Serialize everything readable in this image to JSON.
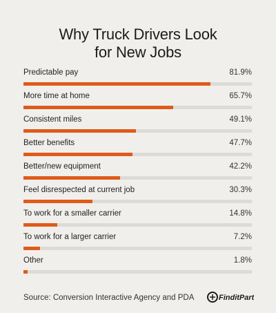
{
  "header": {
    "title_line1": "Why Truck Drivers Look",
    "title_line2": "for New Jobs"
  },
  "chart_data": {
    "type": "bar",
    "orientation": "horizontal",
    "title": "Why Truck Drivers Look for New Jobs",
    "xlim": [
      0,
      100
    ],
    "grid": false,
    "categories": [
      "Predictable pay",
      "More time at home",
      "Consistent miles",
      "Better benefits",
      "Better/new equipment",
      "Feel disrespected at current job",
      "To work for a smaller carrier",
      "To work for a larger carrier",
      "Other"
    ],
    "values": [
      81.9,
      65.7,
      49.1,
      47.7,
      42.2,
      30.3,
      14.8,
      7.2,
      1.8
    ],
    "value_labels": [
      "81.9%",
      "65.7%",
      "49.1%",
      "47.7%",
      "42.2%",
      "30.3%",
      "14.8%",
      "7.2%",
      "1.8%"
    ]
  },
  "colors": {
    "bar": "#de5b1a",
    "track": "#dddbd7",
    "background": "#f1efeb"
  },
  "footer": {
    "source": "Source: Conversion Interactive Agency and PDA",
    "logo_text": "FinditParts",
    "logo_icon": "wrench-icon"
  }
}
